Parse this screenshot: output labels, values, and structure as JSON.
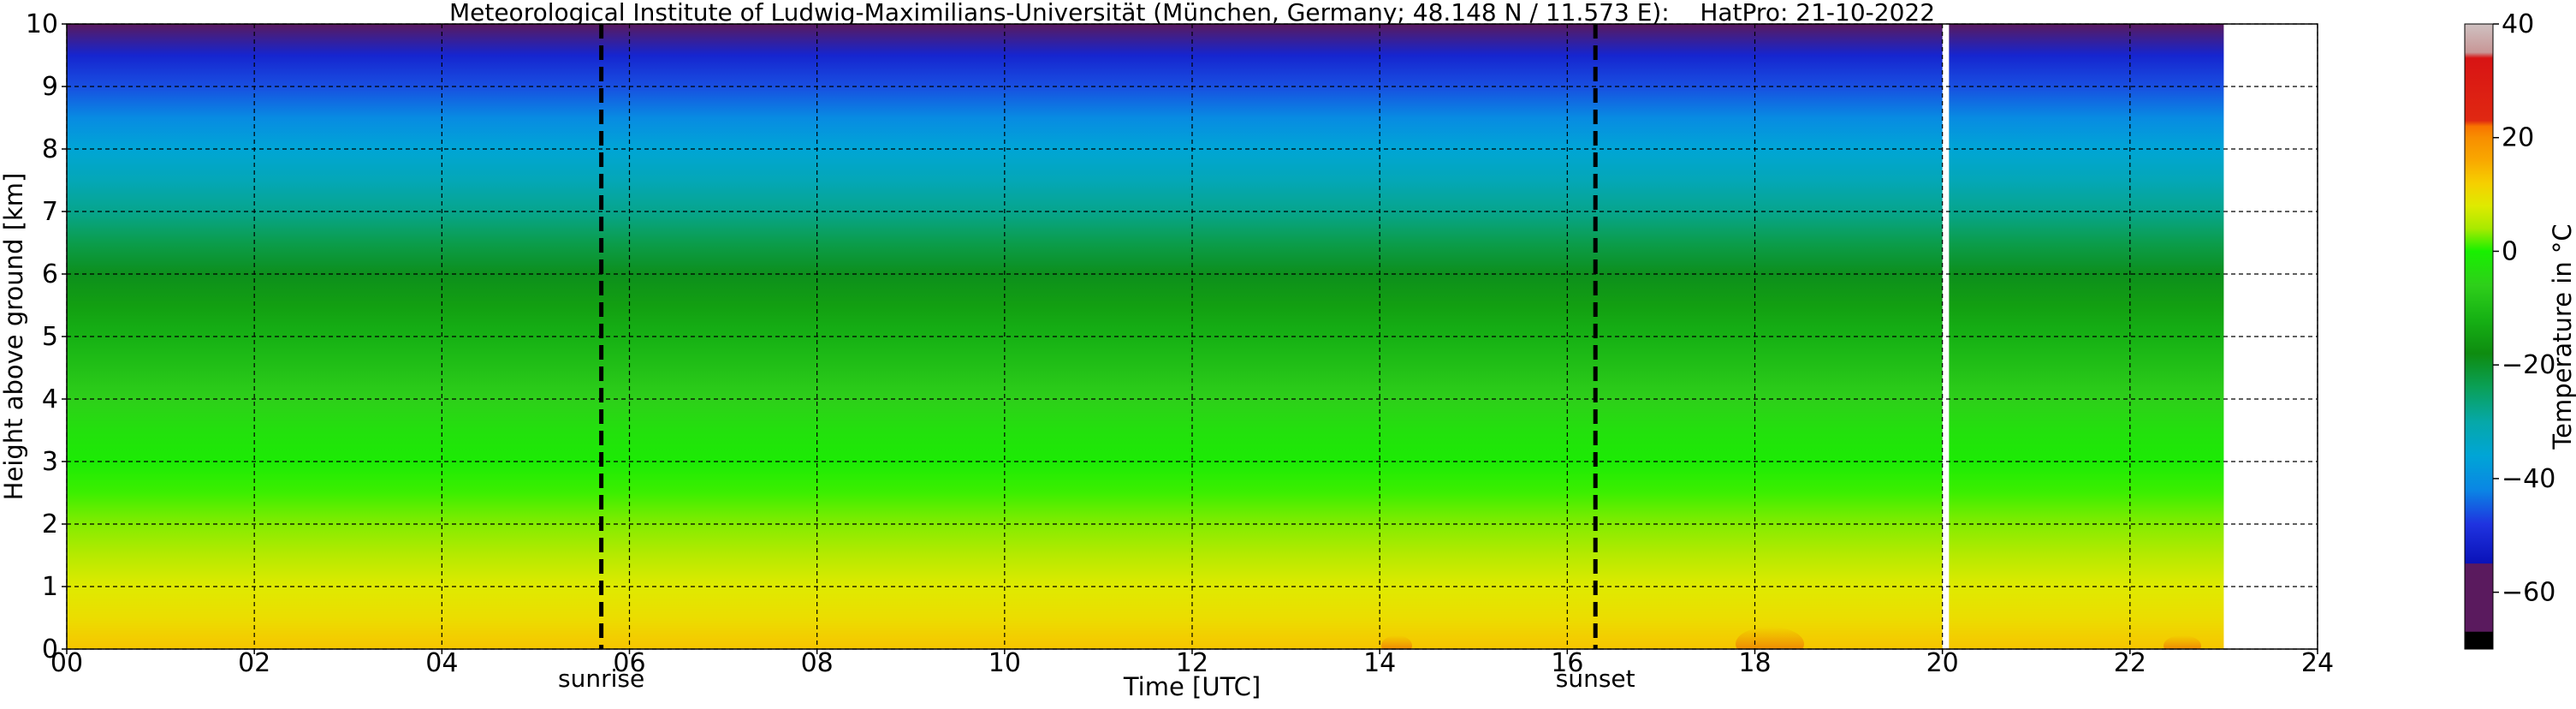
{
  "chart_data": {
    "type": "heatmap",
    "title": "Meteorological Institute of Ludwig-Maximilians-Universität (München, Germany; 48.148 N / 11.573 E):    HatPro: 21-10-2022",
    "xlabel": "Time [UTC]",
    "ylabel": "Height above ground [km]",
    "xlim": [
      0,
      24
    ],
    "ylim": [
      0,
      10
    ],
    "x_ticks": [
      "00",
      "02",
      "04",
      "06",
      "08",
      "10",
      "12",
      "14",
      "16",
      "18",
      "20",
      "22",
      "24"
    ],
    "y_ticks": [
      "0",
      "1",
      "2",
      "3",
      "4",
      "5",
      "6",
      "7",
      "8",
      "9",
      "10"
    ],
    "grid": true,
    "data_extent_hours": [
      0,
      23
    ],
    "data_gap_hours": [
      20.0,
      20.07
    ],
    "events": [
      {
        "label": "sunrise",
        "time_hours": 5.7
      },
      {
        "label": "sunset",
        "time_hours": 16.3
      }
    ],
    "height_profile": {
      "heights_km": [
        0,
        0.5,
        1.0,
        1.5,
        2.0,
        2.5,
        3.0,
        3.5,
        4.0,
        4.5,
        5.0,
        5.5,
        6.0,
        6.5,
        7.0,
        7.5,
        8.0,
        8.5,
        9.0,
        9.5,
        10.0
      ],
      "temperature_c": [
        13,
        10,
        8,
        5,
        3,
        1,
        -1,
        -3,
        -6,
        -9,
        -12,
        -15,
        -19,
        -23,
        -28,
        -32,
        -36,
        -41,
        -46,
        -51,
        -56
      ]
    },
    "colorbar": {
      "label": "Temperature in °C",
      "range": [
        -70,
        40
      ],
      "ticks": [
        "40",
        "20",
        "0",
        "−20",
        "−40",
        "−60"
      ],
      "tick_values": [
        40,
        20,
        0,
        -20,
        -40,
        -60
      ],
      "stops": [
        {
          "value": -70,
          "color": "#000000"
        },
        {
          "value": -67,
          "color": "#000000"
        },
        {
          "value": -66.9,
          "color": "#5a1a5e"
        },
        {
          "value": -55,
          "color": "#5a1a5e"
        },
        {
          "value": -54.9,
          "color": "#0a12b8"
        },
        {
          "value": -48,
          "color": "#1f33e0"
        },
        {
          "value": -42,
          "color": "#0a86e4"
        },
        {
          "value": -36,
          "color": "#00a5d6"
        },
        {
          "value": -30,
          "color": "#06a8a8"
        },
        {
          "value": -24,
          "color": "#0aa058"
        },
        {
          "value": -18,
          "color": "#0e8c10"
        },
        {
          "value": -12,
          "color": "#16b114"
        },
        {
          "value": -6,
          "color": "#2ecf1a"
        },
        {
          "value": 0,
          "color": "#18f000"
        },
        {
          "value": 4,
          "color": "#a8ea00"
        },
        {
          "value": 8,
          "color": "#dfea00"
        },
        {
          "value": 12,
          "color": "#f6cf00"
        },
        {
          "value": 16,
          "color": "#f9a800"
        },
        {
          "value": 20,
          "color": "#f88e00"
        },
        {
          "value": 22,
          "color": "#f87400"
        },
        {
          "value": 23,
          "color": "#e02812"
        },
        {
          "value": 34,
          "color": "#d81414"
        },
        {
          "value": 35,
          "color": "#c89696"
        },
        {
          "value": 40,
          "color": "#cfc2c2"
        }
      ]
    }
  }
}
